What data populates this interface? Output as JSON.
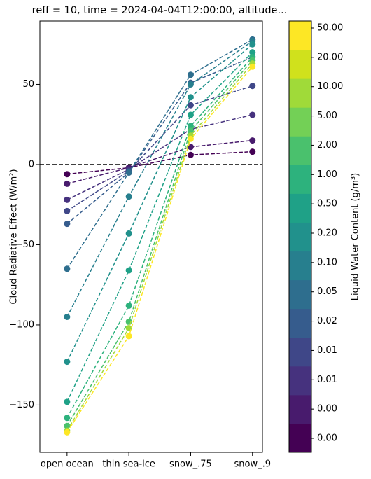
{
  "chart_data": {
    "type": "line",
    "title": "reff = 10, time = 2024-04-04T12:00:00, altitude...",
    "y_label": "Cloud Radiative Effect (W/m²)",
    "categories": [
      "open ocean",
      "thin sea-ice",
      "snow_.75",
      "snow_.9"
    ],
    "series": [
      {
        "color": "#440154",
        "values": [
          -6,
          -2,
          6,
          8
        ]
      },
      {
        "color": "#481b6d",
        "values": [
          -12,
          -2,
          11,
          15
        ]
      },
      {
        "color": "#46327e",
        "values": [
          -22,
          -3,
          22,
          31
        ]
      },
      {
        "color": "#3f4788",
        "values": [
          -29,
          -4,
          37,
          49
        ]
      },
      {
        "color": "#365c8d",
        "values": [
          -37,
          -5,
          51,
          67
        ]
      },
      {
        "color": "#2e6e8e",
        "values": [
          -65,
          -5,
          56,
          78
        ]
      },
      {
        "color": "#277f8e",
        "values": [
          -95,
          -20,
          50,
          77
        ]
      },
      {
        "color": "#21918c",
        "values": [
          -123,
          -43,
          42,
          75
        ]
      },
      {
        "color": "#1fa187",
        "values": [
          -148,
          -66,
          31,
          70
        ]
      },
      {
        "color": "#2db27d",
        "values": [
          -158,
          -88,
          24,
          67
        ]
      },
      {
        "color": "#4ac16d",
        "values": [
          -163,
          -98,
          21,
          65
        ]
      },
      {
        "color": "#a0da39",
        "values": [
          -166,
          -102,
          18,
          63
        ]
      },
      {
        "color": "#fde725",
        "values": [
          -167,
          -107,
          16,
          61
        ]
      }
    ],
    "ylim": [
      -179.5,
      89.5
    ],
    "yticks": [
      {
        "value": -150,
        "label": "−150"
      },
      {
        "value": -100,
        "label": "−100"
      },
      {
        "value": -50,
        "label": "−50"
      },
      0,
      50
    ],
    "hline": 0,
    "colorbar": {
      "label": "Liquid Water Content (g/m³)",
      "colors": [
        "#440154",
        "#481b6d",
        "#46327e",
        "#3f4788",
        "#365c8d",
        "#2e6e8e",
        "#277f8e",
        "#21918c",
        "#1fa187",
        "#2db27d",
        "#4ac16d",
        "#73d056",
        "#a0da39",
        "#d0e11c",
        "#fde725"
      ],
      "ticks": [
        {
          "value": 0.001,
          "label": "0.00"
        },
        {
          "value": 0.002,
          "label": "0.00"
        },
        {
          "value": 0.005,
          "label": "0.01"
        },
        {
          "value": 0.01,
          "label": "0.01"
        },
        {
          "value": 0.02,
          "label": "0.02"
        },
        {
          "value": 0.05,
          "label": "0.05"
        },
        {
          "value": 0.1,
          "label": "0.10"
        },
        {
          "value": 0.2,
          "label": "0.20"
        },
        {
          "value": 0.5,
          "label": "0.50"
        },
        1.0,
        2.0,
        5.0,
        10.0,
        20.0,
        50.0
      ]
    }
  }
}
